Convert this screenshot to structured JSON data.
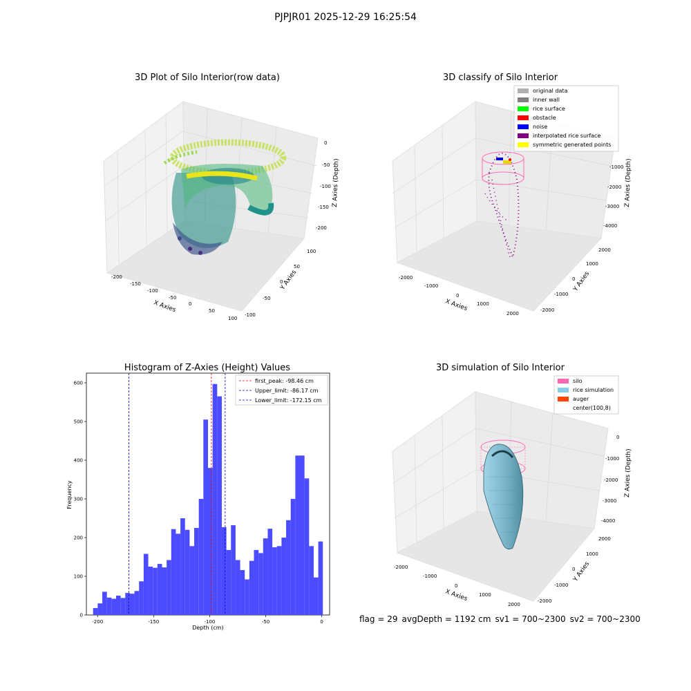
{
  "suptitle": "PJPJR01 2025-12-29 16:25:54",
  "footer": {
    "flag": "flag = 29",
    "avg_depth": "avgDepth = 1192 cm",
    "sv1": "sv1 = 700~2300",
    "sv2": "sv2 = 700~2300"
  },
  "colors": {
    "hist_bar": "#4b4bff",
    "peak_line": "#ff0000",
    "limit_line": "#0000cc",
    "silo_pink": "#ff69b4",
    "rice_sim": "#87cefa",
    "auger": "#ff4500",
    "purple": "#800080",
    "viridis_low": "#440154",
    "viridis_mid": "#21918c",
    "viridis_high": "#fde725"
  },
  "chart_data": [
    {
      "type": "scatter",
      "title": "3D Plot of Silo Interior(row data)",
      "xlabel": "X Axies",
      "ylabel": "Y Axies",
      "zlabel": "Z Axies (Depth)",
      "x_ticks": [
        "-200",
        "-150",
        "-100",
        "-50",
        "0",
        "50",
        "100"
      ],
      "y_ticks": [
        "-100",
        "-50",
        "0",
        "50",
        "100"
      ],
      "z_ticks": [
        "0",
        "-50",
        "-100",
        "-150",
        "-200"
      ],
      "colormap": "viridis"
    },
    {
      "type": "scatter",
      "title": "3D classify of Silo Interior",
      "xlabel": "X Axies",
      "ylabel": "Y Axies",
      "zlabel": "Z Axies (Depth)",
      "x_ticks": [
        "-2000",
        "-1000",
        "0",
        "1000",
        "2000"
      ],
      "y_ticks": [
        "-2000",
        "-1000",
        "0",
        "1000",
        "2000"
      ],
      "z_ticks": [
        "-1000",
        "-2000",
        "-3000",
        "-4000"
      ],
      "legend_position": "top-right",
      "legend": [
        {
          "label": "original data",
          "color": "#b0b0b0"
        },
        {
          "label": "inner wall",
          "color": "#808080"
        },
        {
          "label": "rice surface",
          "color": "#00ff00"
        },
        {
          "label": "obstacle",
          "color": "#ff0000"
        },
        {
          "label": "noise",
          "color": "#0000ff"
        },
        {
          "label": "interpolated rice surface",
          "color": "#800080"
        },
        {
          "label": "symmetric generated points",
          "color": "#ffff00"
        }
      ]
    },
    {
      "type": "bar",
      "title": "Histogram of Z-Axies (Height) Values",
      "xlabel": "Depth (cm)",
      "ylabel": "Frequency",
      "xlim": [
        -210,
        7
      ],
      "ylim": [
        0,
        625
      ],
      "x_ticks": [
        -200,
        -150,
        -100,
        -50,
        0
      ],
      "y_ticks": [
        0,
        100,
        200,
        300,
        400,
        500,
        600
      ],
      "bin_start": -204,
      "bin_width": 4.1,
      "counts": [
        18,
        30,
        60,
        45,
        42,
        50,
        44,
        57,
        55,
        62,
        87,
        158,
        125,
        122,
        132,
        123,
        142,
        222,
        210,
        250,
        220,
        178,
        225,
        300,
        505,
        380,
        597,
        565,
        227,
        168,
        232,
        142,
        116,
        92,
        140,
        168,
        160,
        198,
        223,
        175,
        178,
        200,
        245,
        300,
        412,
        412,
        353,
        178,
        97,
        190
      ],
      "vlines": [
        {
          "label": "first_peak: -98.46 cm",
          "x": -98.46,
          "color": "#ff0000"
        },
        {
          "label": "Upper_limit: -86.17 cm",
          "x": -86.17,
          "color": "#0000cc"
        },
        {
          "label": "Lower_limit: -172.15 cm",
          "x": -172.15,
          "color": "#0000cc"
        }
      ],
      "legend_position": "top-right"
    },
    {
      "type": "scatter",
      "title": "3D simulation of Silo Interior",
      "xlabel": "X Axies",
      "ylabel": "Y Axies",
      "zlabel": "Z Axies (Depth)",
      "x_ticks": [
        "-2000",
        "-1000",
        "0",
        "1000",
        "2000"
      ],
      "y_ticks": [
        "-2000",
        "-1000",
        "0",
        "1000",
        "2000"
      ],
      "z_ticks": [
        "0",
        "-1000",
        "-2000",
        "-3000",
        "-4000"
      ],
      "legend_position": "top-right",
      "legend": [
        {
          "label": "silo",
          "color": "#ff69b4"
        },
        {
          "label": "rice simulation",
          "color": "#87ceeb"
        },
        {
          "label": "auger",
          "color": "#ff4500"
        },
        {
          "label": "center(100,8)",
          "color": "#ffffff"
        }
      ]
    }
  ]
}
